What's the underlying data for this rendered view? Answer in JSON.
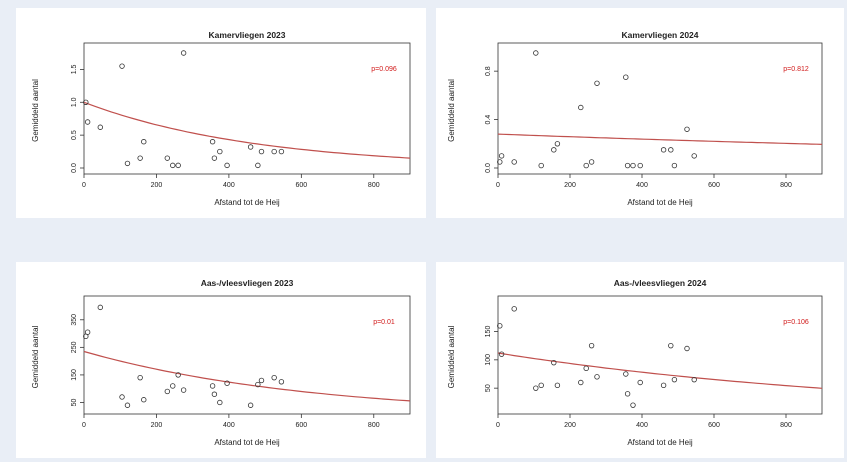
{
  "colors": {
    "fit": "#c0504d",
    "pvalue": "#d11a1a",
    "points": "#333333"
  },
  "chart_data": [
    {
      "type": "scatter",
      "title": "Kamervliegen 2023",
      "xlabel": "Afstand tot de Heij",
      "ylabel": "Gemiddeld aantal",
      "xlim": [
        0,
        900
      ],
      "ylim": [
        0,
        1.75
      ],
      "xticks": [
        0,
        200,
        400,
        600,
        800
      ],
      "yticks": [
        0.0,
        0.5,
        1.0,
        1.5
      ],
      "ytick_labels": [
        "0.0",
        "0.5",
        "1.0",
        "1.5"
      ],
      "annotation": "p=0.096",
      "points": [
        [
          5,
          1.0
        ],
        [
          10,
          0.7
        ],
        [
          45,
          0.62
        ],
        [
          105,
          1.55
        ],
        [
          120,
          0.07
        ],
        [
          155,
          0.15
        ],
        [
          165,
          0.4
        ],
        [
          230,
          0.15
        ],
        [
          245,
          0.04
        ],
        [
          260,
          0.04
        ],
        [
          275,
          1.75
        ],
        [
          355,
          0.4
        ],
        [
          360,
          0.15
        ],
        [
          375,
          0.25
        ],
        [
          395,
          0.04
        ],
        [
          460,
          0.32
        ],
        [
          480,
          0.04
        ],
        [
          490,
          0.25
        ],
        [
          525,
          0.25
        ],
        [
          545,
          0.25
        ]
      ],
      "fit": {
        "type": "exp",
        "a": 1.0,
        "b": -0.0021,
        "x_range": [
          0,
          900
        ]
      }
    },
    {
      "type": "scatter",
      "title": "Kamervliegen 2024",
      "xlabel": "Afstand tot de Heij",
      "ylabel": "Gemiddeld aantal",
      "xlim": [
        0,
        900
      ],
      "ylim": [
        0,
        0.95
      ],
      "xticks": [
        0,
        200,
        400,
        600,
        800
      ],
      "yticks": [
        0.0,
        0.4,
        0.8
      ],
      "ytick_labels": [
        "0.0",
        "0.4",
        "0.8"
      ],
      "annotation": "p=0.812",
      "points": [
        [
          5,
          0.05
        ],
        [
          10,
          0.1
        ],
        [
          45,
          0.05
        ],
        [
          105,
          0.95
        ],
        [
          120,
          0.02
        ],
        [
          155,
          0.15
        ],
        [
          165,
          0.2
        ],
        [
          230,
          0.5
        ],
        [
          245,
          0.02
        ],
        [
          260,
          0.05
        ],
        [
          275,
          0.7
        ],
        [
          355,
          0.75
        ],
        [
          360,
          0.02
        ],
        [
          375,
          0.02
        ],
        [
          395,
          0.02
        ],
        [
          460,
          0.15
        ],
        [
          480,
          0.15
        ],
        [
          490,
          0.02
        ],
        [
          525,
          0.32
        ],
        [
          545,
          0.1
        ]
      ],
      "fit": {
        "type": "exp",
        "a": 0.28,
        "b": -0.0004,
        "x_range": [
          0,
          900
        ]
      }
    },
    {
      "type": "scatter",
      "title": "Aas-/vleesvliegen 2023",
      "xlabel": "Afstand tot de Heij",
      "ylabel": "Gemiddeld aantal",
      "xlim": [
        0,
        900
      ],
      "ylim": [
        30,
        400
      ],
      "xticks": [
        0,
        200,
        400,
        600,
        800
      ],
      "yticks": [
        50,
        150,
        250,
        350
      ],
      "ytick_labels": [
        "50",
        "150",
        "250",
        "350"
      ],
      "annotation": "p=0.01",
      "points": [
        [
          5,
          290
        ],
        [
          10,
          305
        ],
        [
          45,
          395
        ],
        [
          105,
          70
        ],
        [
          120,
          40
        ],
        [
          155,
          140
        ],
        [
          165,
          60
        ],
        [
          230,
          90
        ],
        [
          245,
          110
        ],
        [
          260,
          150
        ],
        [
          275,
          95
        ],
        [
          355,
          110
        ],
        [
          360,
          80
        ],
        [
          375,
          50
        ],
        [
          395,
          120
        ],
        [
          460,
          40
        ],
        [
          480,
          115
        ],
        [
          490,
          130
        ],
        [
          525,
          140
        ],
        [
          545,
          125
        ]
      ],
      "fit": {
        "type": "exp",
        "a": 235,
        "b": -0.0016,
        "x_range": [
          0,
          900
        ]
      }
    },
    {
      "type": "scatter",
      "title": "Aas-/vleesvliegen 2024",
      "xlabel": "Afstand tot de Heij",
      "ylabel": "Gemiddeld aantal",
      "xlim": [
        0,
        900
      ],
      "ylim": [
        15,
        195
      ],
      "xticks": [
        0,
        200,
        400,
        600,
        800
      ],
      "yticks": [
        50,
        100,
        150
      ],
      "ytick_labels": [
        "50",
        "100",
        "150"
      ],
      "annotation": "p=0.106",
      "points": [
        [
          5,
          160
        ],
        [
          10,
          110
        ],
        [
          45,
          190
        ],
        [
          105,
          50
        ],
        [
          120,
          55
        ],
        [
          155,
          95
        ],
        [
          165,
          55
        ],
        [
          230,
          60
        ],
        [
          245,
          85
        ],
        [
          260,
          125
        ],
        [
          275,
          70
        ],
        [
          355,
          75
        ],
        [
          360,
          40
        ],
        [
          375,
          20
        ],
        [
          395,
          60
        ],
        [
          460,
          55
        ],
        [
          480,
          125
        ],
        [
          490,
          65
        ],
        [
          525,
          120
        ],
        [
          545,
          65
        ]
      ],
      "fit": {
        "type": "exp",
        "a": 112,
        "b": -0.0009,
        "x_range": [
          0,
          900
        ]
      }
    }
  ]
}
